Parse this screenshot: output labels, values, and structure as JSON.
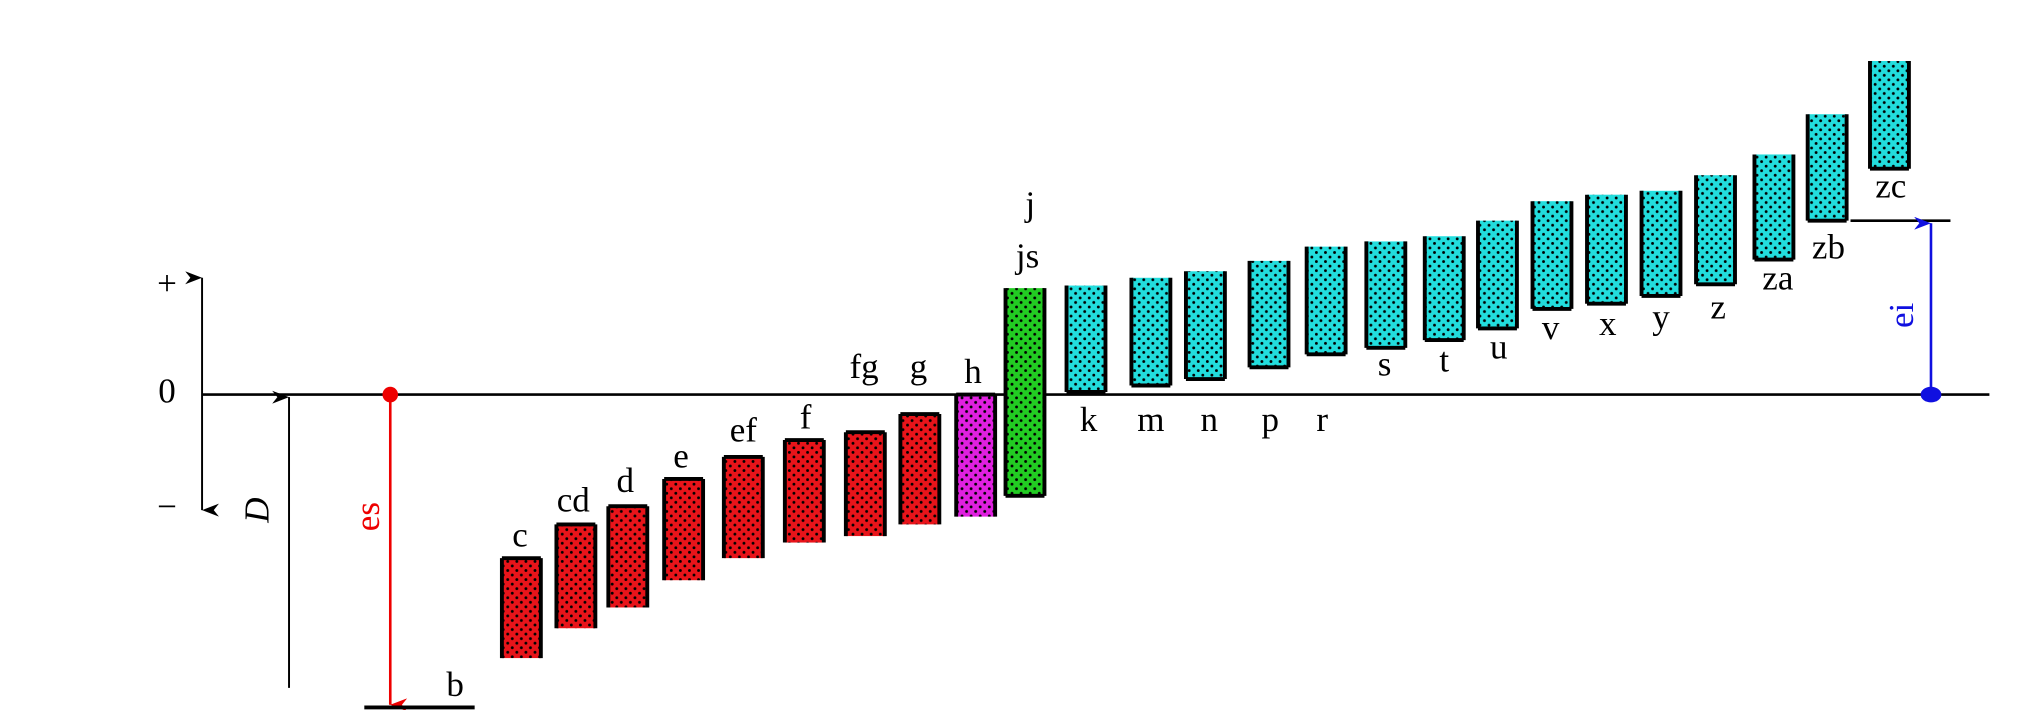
{
  "axis": {
    "plus": "+",
    "zero": "0",
    "minus": "−"
  },
  "labels": {
    "D": "D",
    "es": "es",
    "ei": "ei"
  },
  "zones": [
    "b",
    "c",
    "cd",
    "d",
    "e",
    "ef",
    "f",
    "fg",
    "g",
    "h",
    "js",
    "k",
    "m",
    "n",
    "p",
    "r",
    "s",
    "t",
    "u",
    "v",
    "x",
    "y",
    "z",
    "za",
    "zb",
    "zc"
  ],
  "extra_label": "j"
}
